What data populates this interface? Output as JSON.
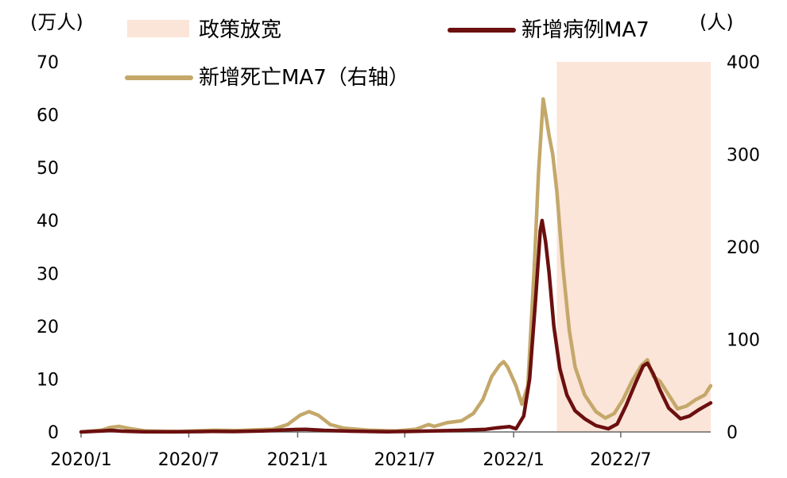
{
  "chart_data": {
    "type": "line",
    "left_axis_unit": "(万人)",
    "right_axis_unit": "(人)",
    "left_ylim": [
      0,
      70
    ],
    "right_ylim": [
      0,
      400
    ],
    "left_ticks": [
      "0",
      "10",
      "20",
      "30",
      "40",
      "50",
      "60",
      "70"
    ],
    "right_ticks": [
      "0",
      "100",
      "200",
      "300",
      "400"
    ],
    "x_ticks": [
      "2020/1",
      "2020/7",
      "2021/1",
      "2021/7",
      "2022/1",
      "2022/7"
    ],
    "x_tick_dates": [
      "2020-01-01",
      "2020-07-01",
      "2021-01-01",
      "2021-07-01",
      "2022-01-01",
      "2022-07-01"
    ],
    "xlim": [
      "2020-01-01",
      "2022-11-30"
    ],
    "legend": {
      "policy_label": "政策放宽",
      "cases_label": "新增病例MA7",
      "deaths_label": "新增死亡MA7（右轴）"
    },
    "policy_period": {
      "start": "2022-03-15",
      "end": "2022-11-30",
      "color": "#fbe4d8"
    },
    "colors": {
      "cases": "#6b0f0f",
      "deaths": "#c4a86a"
    },
    "series": [
      {
        "name": "新增病例MA7",
        "axis": "left",
        "points": [
          [
            "2020-01-01",
            0.0
          ],
          [
            "2020-02-05",
            0.2
          ],
          [
            "2020-02-20",
            0.3
          ],
          [
            "2020-03-10",
            0.15
          ],
          [
            "2020-04-15",
            0.05
          ],
          [
            "2020-06-01",
            0.02
          ],
          [
            "2020-08-10",
            0.1
          ],
          [
            "2020-09-15",
            0.08
          ],
          [
            "2020-11-01",
            0.2
          ],
          [
            "2020-12-25",
            0.45
          ],
          [
            "2021-01-15",
            0.5
          ],
          [
            "2021-02-15",
            0.3
          ],
          [
            "2021-04-01",
            0.15
          ],
          [
            "2021-06-01",
            0.05
          ],
          [
            "2021-07-15",
            0.1
          ],
          [
            "2021-08-15",
            0.2
          ],
          [
            "2021-10-01",
            0.3
          ],
          [
            "2021-11-15",
            0.5
          ],
          [
            "2021-12-05",
            0.8
          ],
          [
            "2021-12-25",
            1.0
          ],
          [
            "2022-01-05",
            0.6
          ],
          [
            "2022-01-18",
            3.0
          ],
          [
            "2022-01-28",
            10.0
          ],
          [
            "2022-02-07",
            25.0
          ],
          [
            "2022-02-15",
            38.0
          ],
          [
            "2022-02-18",
            40.0
          ],
          [
            "2022-02-24",
            36.0
          ],
          [
            "2022-03-02",
            30.0
          ],
          [
            "2022-03-10",
            20.0
          ],
          [
            "2022-03-20",
            12.0
          ],
          [
            "2022-04-01",
            7.0
          ],
          [
            "2022-04-15",
            4.0
          ],
          [
            "2022-05-01",
            2.5
          ],
          [
            "2022-05-20",
            1.2
          ],
          [
            "2022-06-10",
            0.6
          ],
          [
            "2022-06-25",
            1.5
          ],
          [
            "2022-07-10",
            5.0
          ],
          [
            "2022-07-25",
            9.0
          ],
          [
            "2022-08-08",
            12.5
          ],
          [
            "2022-08-15",
            13.0
          ],
          [
            "2022-08-25",
            11.0
          ],
          [
            "2022-09-05",
            8.0
          ],
          [
            "2022-09-20",
            4.5
          ],
          [
            "2022-10-10",
            2.5
          ],
          [
            "2022-10-25",
            3.0
          ],
          [
            "2022-11-10",
            4.2
          ],
          [
            "2022-11-30",
            5.5
          ]
        ]
      },
      {
        "name": "新增死亡MA7（右轴）",
        "axis": "right",
        "points": [
          [
            "2020-01-01",
            0
          ],
          [
            "2020-02-05",
            2
          ],
          [
            "2020-02-20",
            5
          ],
          [
            "2020-03-05",
            6
          ],
          [
            "2020-03-20",
            4
          ],
          [
            "2020-04-20",
            1
          ],
          [
            "2020-06-15",
            0.5
          ],
          [
            "2020-08-15",
            2
          ],
          [
            "2020-09-20",
            1.5
          ],
          [
            "2020-11-20",
            3
          ],
          [
            "2020-12-15",
            8
          ],
          [
            "2021-01-05",
            18
          ],
          [
            "2021-01-20",
            22
          ],
          [
            "2021-02-05",
            18
          ],
          [
            "2021-02-25",
            8
          ],
          [
            "2021-03-20",
            4
          ],
          [
            "2021-05-01",
            2
          ],
          [
            "2021-06-15",
            1
          ],
          [
            "2021-07-20",
            3
          ],
          [
            "2021-08-10",
            8
          ],
          [
            "2021-08-20",
            6
          ],
          [
            "2021-09-10",
            10
          ],
          [
            "2021-10-05",
            12
          ],
          [
            "2021-10-25",
            20
          ],
          [
            "2021-11-10",
            35
          ],
          [
            "2021-11-25",
            60
          ],
          [
            "2021-12-08",
            72
          ],
          [
            "2021-12-15",
            76
          ],
          [
            "2021-12-22",
            70
          ],
          [
            "2022-01-05",
            50
          ],
          [
            "2022-01-15",
            30
          ],
          [
            "2022-01-25",
            50
          ],
          [
            "2022-02-05",
            180
          ],
          [
            "2022-02-12",
            280
          ],
          [
            "2022-02-20",
            360
          ],
          [
            "2022-02-25",
            340
          ],
          [
            "2022-03-02",
            320
          ],
          [
            "2022-03-08",
            300
          ],
          [
            "2022-03-15",
            260
          ],
          [
            "2022-03-25",
            180
          ],
          [
            "2022-04-05",
            110
          ],
          [
            "2022-04-15",
            70
          ],
          [
            "2022-05-01",
            40
          ],
          [
            "2022-05-20",
            22
          ],
          [
            "2022-06-05",
            15
          ],
          [
            "2022-06-20",
            20
          ],
          [
            "2022-07-05",
            35
          ],
          [
            "2022-07-20",
            55
          ],
          [
            "2022-08-05",
            72
          ],
          [
            "2022-08-15",
            78
          ],
          [
            "2022-08-25",
            60
          ],
          [
            "2022-09-05",
            55
          ],
          [
            "2022-09-20",
            40
          ],
          [
            "2022-10-05",
            25
          ],
          [
            "2022-10-20",
            28
          ],
          [
            "2022-11-05",
            35
          ],
          [
            "2022-11-20",
            40
          ],
          [
            "2022-11-30",
            50
          ]
        ]
      }
    ]
  }
}
